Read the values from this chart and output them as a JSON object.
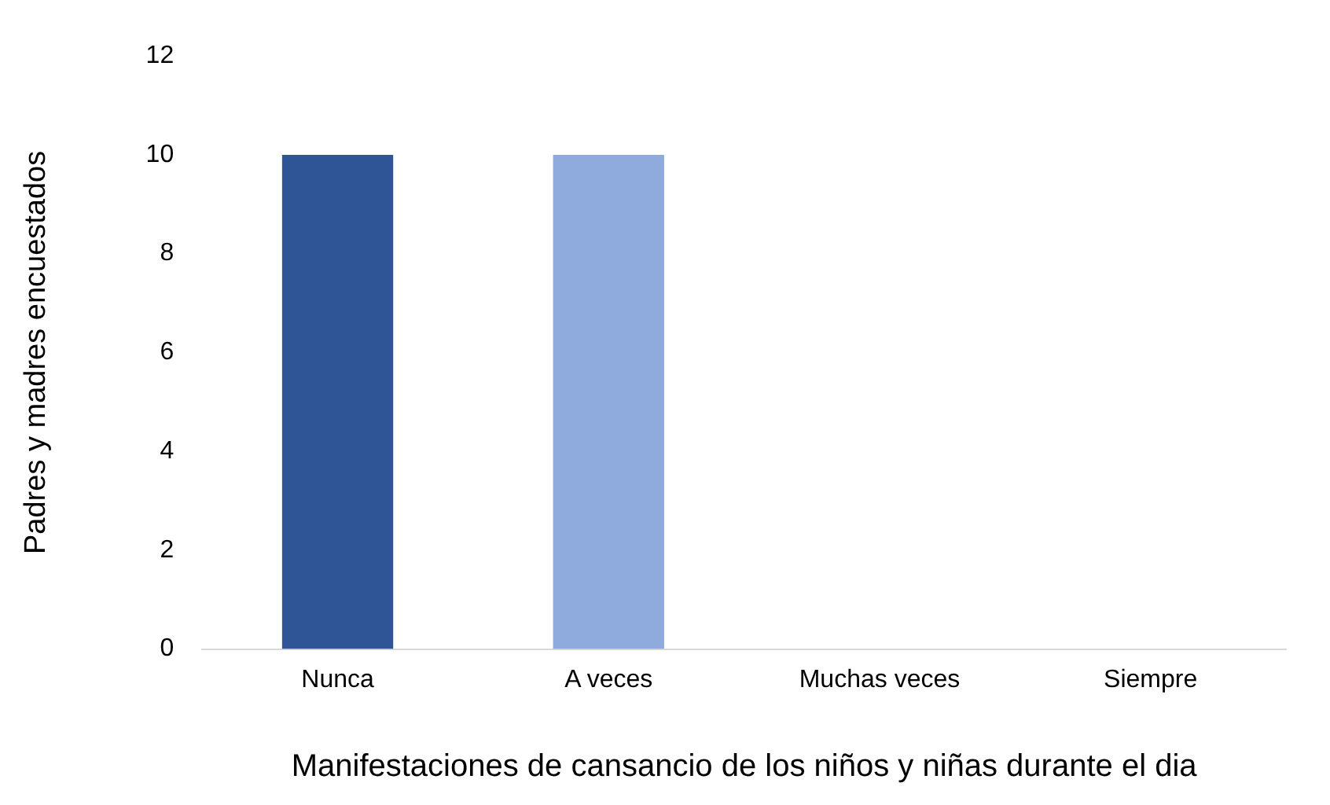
{
  "chart_data": {
    "type": "bar",
    "xlabel": "Manifestaciones de cansancio de los niños y niñas durante el dia",
    "ylabel": "Padres y madres encuestados",
    "categories": [
      "Nunca",
      "A veces",
      "Muchas veces",
      "Siempre"
    ],
    "values": [
      10,
      10,
      0,
      0
    ],
    "colors": [
      "#2f5597",
      "#8faadc",
      "#2f5597",
      "#8faadc"
    ],
    "ylim": [
      0,
      12
    ],
    "yticks": [
      0,
      2,
      4,
      6,
      8,
      10,
      12
    ],
    "grid": false,
    "legend": false
  }
}
